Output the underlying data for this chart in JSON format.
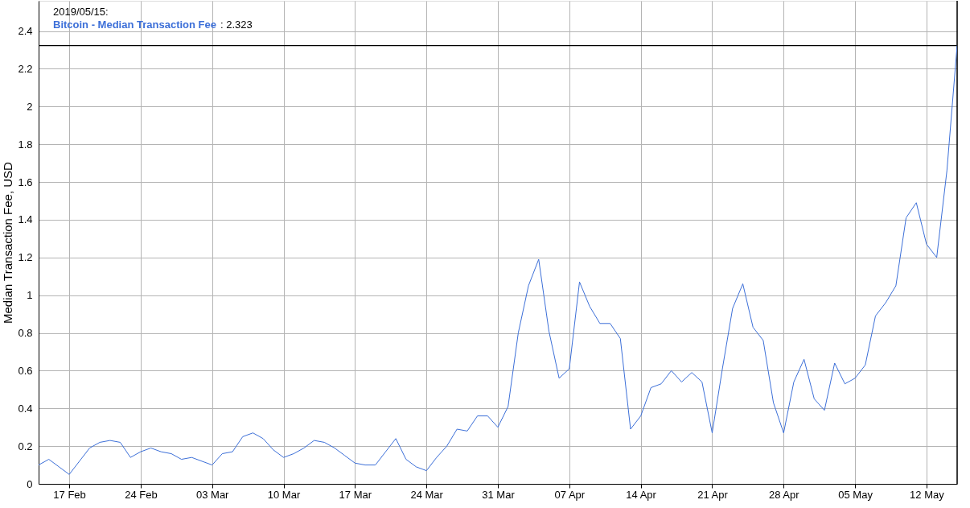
{
  "chart_data": {
    "type": "line",
    "ylabel": "Median Transaction Fee, USD",
    "x": [
      "2019-02-14",
      "2019-02-15",
      "2019-02-16",
      "2019-02-17",
      "2019-02-18",
      "2019-02-19",
      "2019-02-20",
      "2019-02-21",
      "2019-02-22",
      "2019-02-23",
      "2019-02-24",
      "2019-02-25",
      "2019-02-26",
      "2019-02-27",
      "2019-02-28",
      "2019-03-01",
      "2019-03-02",
      "2019-03-03",
      "2019-03-04",
      "2019-03-05",
      "2019-03-06",
      "2019-03-07",
      "2019-03-08",
      "2019-03-09",
      "2019-03-10",
      "2019-03-11",
      "2019-03-12",
      "2019-03-13",
      "2019-03-14",
      "2019-03-15",
      "2019-03-16",
      "2019-03-17",
      "2019-03-18",
      "2019-03-19",
      "2019-03-20",
      "2019-03-21",
      "2019-03-22",
      "2019-03-23",
      "2019-03-24",
      "2019-03-25",
      "2019-03-26",
      "2019-03-27",
      "2019-03-28",
      "2019-03-29",
      "2019-03-30",
      "2019-03-31",
      "2019-04-01",
      "2019-04-02",
      "2019-04-03",
      "2019-04-04",
      "2019-04-05",
      "2019-04-06",
      "2019-04-07",
      "2019-04-08",
      "2019-04-09",
      "2019-04-10",
      "2019-04-11",
      "2019-04-12",
      "2019-04-13",
      "2019-04-14",
      "2019-04-15",
      "2019-04-16",
      "2019-04-17",
      "2019-04-18",
      "2019-04-19",
      "2019-04-20",
      "2019-04-21",
      "2019-04-22",
      "2019-04-23",
      "2019-04-24",
      "2019-04-25",
      "2019-04-26",
      "2019-04-27",
      "2019-04-28",
      "2019-04-29",
      "2019-04-30",
      "2019-05-01",
      "2019-05-02",
      "2019-05-03",
      "2019-05-04",
      "2019-05-05",
      "2019-05-06",
      "2019-05-07",
      "2019-05-08",
      "2019-05-09",
      "2019-05-10",
      "2019-05-11",
      "2019-05-12",
      "2019-05-13",
      "2019-05-14",
      "2019-05-15"
    ],
    "series": [
      {
        "name": "Bitcoin - Median Transaction Fee",
        "color": "#3c6fd8",
        "values": [
          0.1,
          0.13,
          0.09,
          0.05,
          0.12,
          0.19,
          0.22,
          0.23,
          0.22,
          0.14,
          0.17,
          0.19,
          0.17,
          0.16,
          0.13,
          0.14,
          0.12,
          0.1,
          0.16,
          0.17,
          0.25,
          0.27,
          0.24,
          0.18,
          0.14,
          0.16,
          0.19,
          0.23,
          0.22,
          0.19,
          0.15,
          0.11,
          0.1,
          0.1,
          0.17,
          0.24,
          0.13,
          0.09,
          0.07,
          0.14,
          0.2,
          0.29,
          0.28,
          0.36,
          0.36,
          0.3,
          0.41,
          0.8,
          1.05,
          1.19,
          0.81,
          0.56,
          0.61,
          1.07,
          0.94,
          0.85,
          0.85,
          0.77,
          0.29,
          0.36,
          0.51,
          0.53,
          0.6,
          0.54,
          0.59,
          0.54,
          0.27,
          0.61,
          0.93,
          1.06,
          0.83,
          0.76,
          0.43,
          0.27,
          0.54,
          0.66,
          0.45,
          0.39,
          0.64,
          0.53,
          0.56,
          0.63,
          0.89,
          0.96,
          1.05,
          1.41,
          1.49,
          1.27,
          1.2,
          1.66,
          2.323
        ]
      }
    ],
    "xlim": [
      "2019-02-14",
      "2019-05-15"
    ],
    "xticks": [
      {
        "value": "2019-02-17",
        "label": "17 Feb"
      },
      {
        "value": "2019-02-24",
        "label": "24 Feb"
      },
      {
        "value": "2019-03-03",
        "label": "03 Mar"
      },
      {
        "value": "2019-03-10",
        "label": "10 Mar"
      },
      {
        "value": "2019-03-17",
        "label": "17 Mar"
      },
      {
        "value": "2019-03-24",
        "label": "24 Mar"
      },
      {
        "value": "2019-03-31",
        "label": "31 Mar"
      },
      {
        "value": "2019-04-07",
        "label": "07 Apr"
      },
      {
        "value": "2019-04-14",
        "label": "14 Apr"
      },
      {
        "value": "2019-04-21",
        "label": "21 Apr"
      },
      {
        "value": "2019-04-28",
        "label": "28 Apr"
      },
      {
        "value": "2019-05-05",
        "label": "05 May"
      },
      {
        "value": "2019-05-12",
        "label": "12 May"
      }
    ],
    "ylim": [
      0,
      2.56
    ],
    "yticks": [
      0,
      0.2,
      0.4,
      0.6,
      0.8,
      1,
      1.2,
      1.4,
      1.6,
      1.8,
      2,
      2.2,
      2.4
    ],
    "grid": true,
    "legend": "top left",
    "marker": "none",
    "line_style": "solid",
    "ref_lines": [
      {
        "axis": "y",
        "value": 2.323,
        "color": "#000000"
      },
      {
        "axis": "x",
        "value": "2019-05-15",
        "color": "#000000"
      }
    ],
    "annotations": [
      "2019/05/15:",
      ": 2.323"
    ]
  }
}
